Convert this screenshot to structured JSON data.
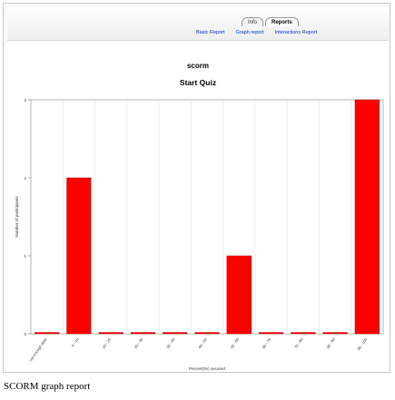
{
  "tabs": [
    {
      "label": "Info",
      "active": false
    },
    {
      "label": "Reports",
      "active": true
    }
  ],
  "subtabs": [
    "Basic Report",
    "Graph report",
    "Interactions Report"
  ],
  "app_title": "scorm",
  "report_title": "Start Quiz",
  "caption": "SCORM graph report",
  "colors": {
    "bar": "#ff0000",
    "link": "#0033cc"
  },
  "chart_data": {
    "type": "bar",
    "categories": [
      "not enough data",
      "0 - 10",
      "10 - 20",
      "20 - 30",
      "30 - 40",
      "40 - 50",
      "50 - 60",
      "60 - 70",
      "70 - 80",
      "80 - 90",
      "90 - 100"
    ],
    "values": [
      0,
      2,
      0,
      0,
      0,
      0,
      1,
      0,
      0,
      0,
      3
    ],
    "xlabel": "Percent(%) secured",
    "ylabel": "Number of participants",
    "ylim": [
      0,
      3
    ],
    "yticks": [
      "0",
      "1",
      "2",
      "3"
    ],
    "grid": true
  }
}
